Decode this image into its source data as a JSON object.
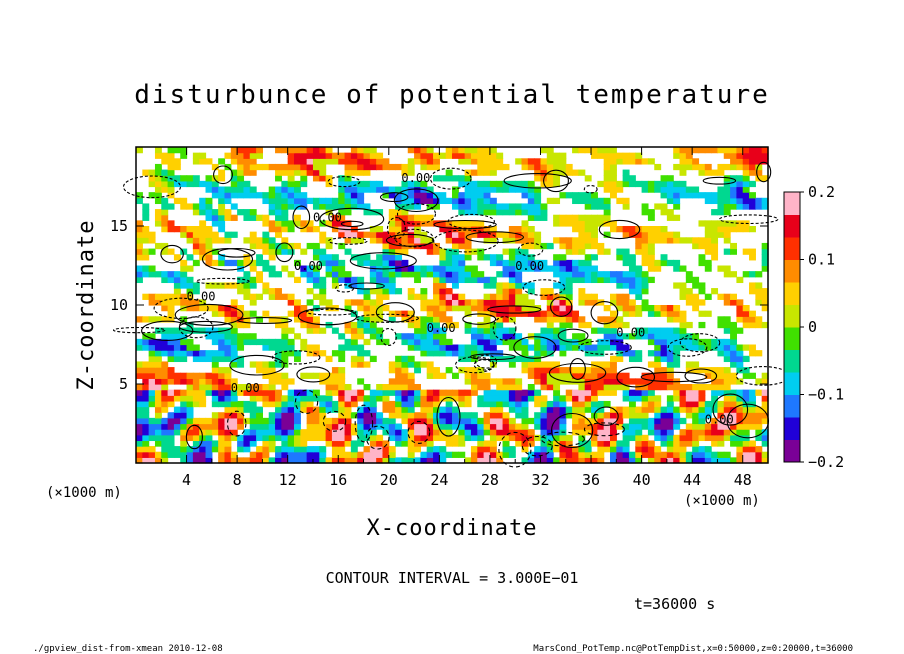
{
  "chart_data": {
    "type": "heatmap",
    "title": "disturbunce of potential temperature",
    "xlabel": "X-coordinate",
    "ylabel": "Z-coordinate",
    "x_unit_label": "(×1000 m)",
    "z_unit_label": "(×1000 m)",
    "xlim": [
      0,
      50
    ],
    "ylim": [
      0,
      20
    ],
    "x_ticks": [
      "4",
      "8",
      "12",
      "16",
      "20",
      "24",
      "28",
      "32",
      "36",
      "40",
      "44",
      "48"
    ],
    "y_ticks": [
      "5",
      "10",
      "15"
    ],
    "colorbar": {
      "range": [
        -0.2,
        0.2
      ],
      "tick_labels": [
        "0.2",
        "0.1",
        "0",
        "−0.1",
        "−0.2"
      ],
      "colors": [
        "#7a0096",
        "#2000d8",
        "#1e78ff",
        "#00cdf0",
        "#00d890",
        "#40e000",
        "#c8e600",
        "#ffd000",
        "#ff8c00",
        "#ff3000",
        "#e8001a",
        "#ffb4c8"
      ]
    },
    "contour_interval_text": "CONTOUR INTERVAL = 3.000E−01",
    "contour_label": "0.00",
    "time_text": "t=36000 s",
    "footer_left": "./gpview_dist-from-xmean  2010-12-08",
    "footer_right": "MarsCond_PotTemp.nc@PotTempDist,x=0:50000,z=0:20000,t=36000",
    "legend": "none",
    "grid": false
  }
}
